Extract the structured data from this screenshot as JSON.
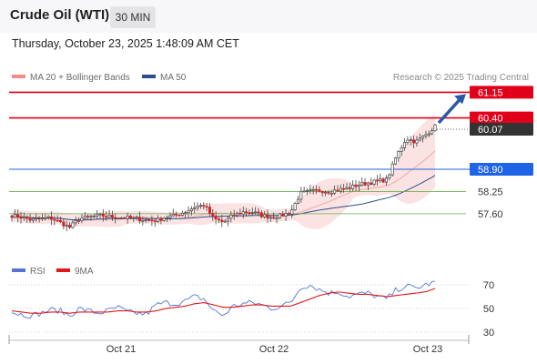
{
  "header": {
    "instrument": "Crude Oil (WTI)",
    "timeframe": "30 MIN"
  },
  "timestamp": "Thursday, October 23, 2025 1:48:09 AM CET",
  "legend": {
    "bollinger": {
      "label": "MA 20 + Bollinger Bands",
      "color": "#f08c8c"
    },
    "ma50": {
      "label": "MA 50",
      "color": "#2c4f8c"
    }
  },
  "credit": "Research © 2025 Trading Central",
  "rsi_legend": {
    "rsi": {
      "label": "RSI",
      "color": "#5575d6"
    },
    "ma9": {
      "label": "9MA",
      "color": "#e01818"
    }
  },
  "chart_data": [
    {
      "type": "candlestick",
      "title": "Crude Oil (WTI)",
      "x_ticks": [
        "Oct 21",
        "Oct 22",
        "Oct 23"
      ],
      "ylim": [
        56.4,
        61.4
      ],
      "current_price": 60.07,
      "levels": [
        {
          "value": 61.15,
          "label": "61.15",
          "style": "resistance",
          "color": "#e0001a"
        },
        {
          "value": 60.4,
          "label": "60.40",
          "style": "resistance",
          "color": "#e0001a"
        },
        {
          "value": 60.07,
          "label": "60.07",
          "style": "last-price",
          "color": "#333333"
        },
        {
          "value": 58.9,
          "label": "58.90",
          "style": "pivot",
          "color": "#1f63e6"
        },
        {
          "value": 58.25,
          "label": "58.25",
          "style": "support",
          "color": "#6ab04c"
        },
        {
          "value": 57.6,
          "label": "57.60",
          "style": "support",
          "color": "#6ab04c"
        }
      ],
      "close_path": [
        57.55,
        57.5,
        57.42,
        57.45,
        57.48,
        57.35,
        57.2,
        57.45,
        57.5,
        57.55,
        57.52,
        57.5,
        57.48,
        57.45,
        57.42,
        57.4,
        57.5,
        57.55,
        57.65,
        57.8,
        57.85,
        57.45,
        57.35,
        57.55,
        57.65,
        57.65,
        57.55,
        57.5,
        57.55,
        57.65,
        58.2,
        58.25,
        58.28,
        58.25,
        58.3,
        58.35,
        58.45,
        58.5,
        58.55,
        58.6,
        59.3,
        59.8,
        59.7,
        59.9,
        60.15
      ],
      "projection": {
        "from": 60.15,
        "to": 61.15,
        "direction": "up"
      }
    },
    {
      "type": "line",
      "title": "RSI",
      "series": [
        {
          "name": "RSI",
          "color": "#5575d6"
        },
        {
          "name": "9MA",
          "color": "#e01818"
        }
      ],
      "ylim": [
        20,
        80
      ],
      "y_ticks": [
        70,
        50,
        30
      ],
      "rsi_path": [
        47,
        45,
        44,
        46,
        49,
        48,
        44,
        50,
        48,
        46,
        48,
        51,
        47,
        46,
        45,
        53,
        55,
        54,
        56,
        60,
        58,
        48,
        44,
        52,
        54,
        55,
        53,
        50,
        52,
        55,
        68,
        70,
        66,
        63,
        64,
        60,
        62,
        63,
        60,
        58,
        66,
        69,
        67,
        70,
        72
      ],
      "ma9_path": [
        48,
        47,
        46,
        46,
        47,
        47,
        46,
        47,
        47,
        47,
        47,
        48,
        48,
        47,
        47,
        48,
        50,
        51,
        52,
        54,
        55,
        53,
        51,
        51,
        52,
        53,
        53,
        52,
        52,
        52,
        55,
        58,
        61,
        63,
        64,
        63,
        62,
        62,
        61,
        60,
        61,
        62,
        63,
        64,
        67
      ]
    }
  ]
}
